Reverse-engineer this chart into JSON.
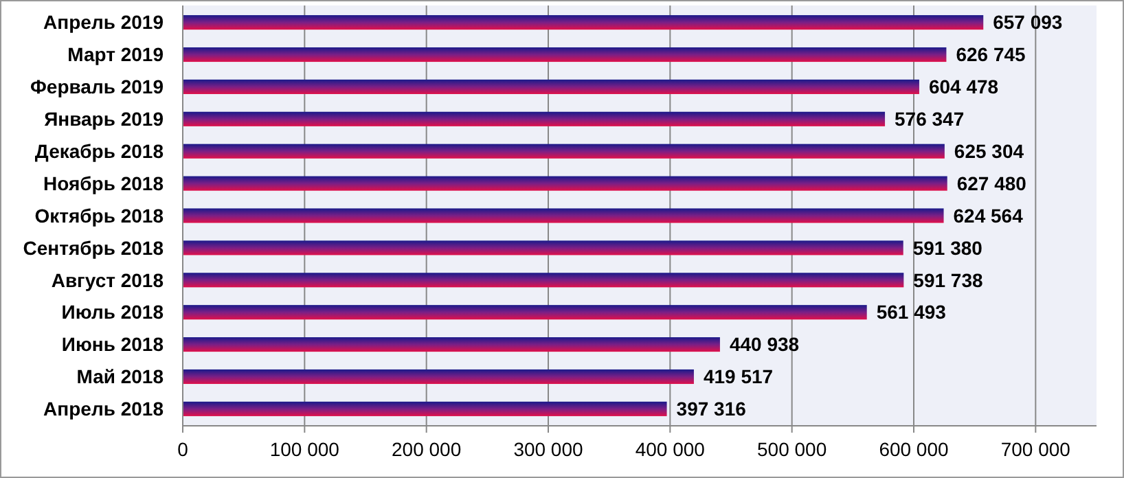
{
  "chart_data": {
    "type": "bar",
    "orientation": "horizontal",
    "categories": [
      "Апрель 2019",
      "Март 2019",
      "Ферваль 2019",
      "Январь 2019",
      "Декабрь 2018",
      "Ноябрь 2018",
      "Октябрь 2018",
      "Сентябрь 2018",
      "Август 2018",
      "Июль 2018",
      "Июнь 2018",
      "Май 2018",
      "Апрель 2018"
    ],
    "series": [
      {
        "color": "#7a1f86",
        "values": [
          657093,
          626745,
          604478,
          576347,
          625304,
          627480,
          624564,
          591380,
          591738,
          561493,
          440938,
          419517,
          397316
        ],
        "value_labels": [
          "657 093",
          "626 745",
          "604 478",
          "576 347",
          "625 304",
          "627 480",
          "624 564",
          "591 380",
          "591 738",
          "561 493",
          "440 938",
          "419 517",
          "397 316"
        ]
      }
    ],
    "xlim": [
      0,
      750000
    ],
    "xticks": [
      {
        "value": 0,
        "label": "0"
      },
      {
        "value": 100000,
        "label": "100 000"
      },
      {
        "value": 200000,
        "label": "200 000"
      },
      {
        "value": 300000,
        "label": "300 000"
      },
      {
        "value": 400000,
        "label": "400 000"
      },
      {
        "value": 500000,
        "label": "500 000"
      },
      {
        "value": 600000,
        "label": "600 000"
      },
      {
        "value": 700000,
        "label": "700 000"
      }
    ],
    "grid": "x"
  }
}
